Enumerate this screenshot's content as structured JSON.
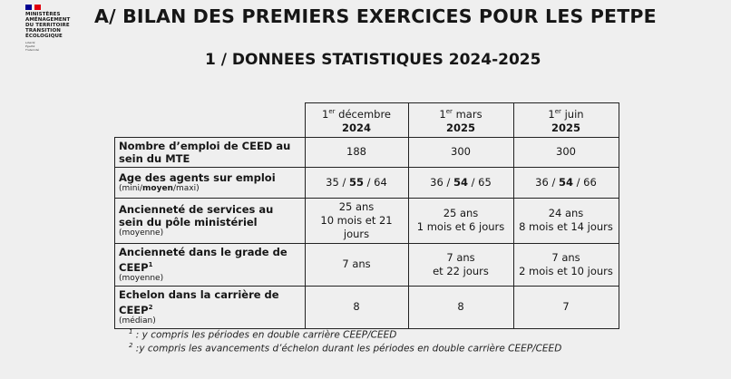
{
  "logo": {
    "lines": [
      "MINISTÈRES",
      "AMÉNAGEMENT",
      "DU TERRITOIRE",
      "TRANSITION",
      "ÉCOLOGIQUE"
    ],
    "motto": [
      "Liberté",
      "Égalité",
      "Fraternité"
    ]
  },
  "title": "A/ BILAN DES PREMIERS EXERCICES POUR LES PETPE",
  "subtitle": "1 / DONNEES STATISTIQUES 2024-2025",
  "table": {
    "columns": [
      {
        "sup": "er",
        "pre": "1",
        "date": "décembre",
        "year": "2024"
      },
      {
        "sup": "er",
        "pre": "1",
        "date": "mars",
        "year": "2025"
      },
      {
        "sup": "er",
        "pre": "1",
        "date": "juin",
        "year": "2025"
      }
    ],
    "rows": [
      {
        "label": "Nombre d’emploi de CEED au sein du MTE",
        "note": "",
        "values": [
          [
            "188"
          ],
          [
            "300"
          ],
          [
            "300"
          ]
        ]
      },
      {
        "label": "Age des agents sur emploi",
        "note_parts": [
          "(mini/",
          "moyen",
          "/maxi)"
        ],
        "values": [
          [
            "35 / ",
            "55",
            " / 64"
          ],
          [
            "36 / ",
            "54",
            " / 65"
          ],
          [
            "36 / ",
            "54",
            " / 66"
          ]
        ]
      },
      {
        "label": "Ancienneté de services au sein du pôle ministériel",
        "note": "(moyenne)",
        "values": [
          [
            "25 ans",
            "10 mois et 21 jours"
          ],
          [
            "25 ans",
            "1 mois et 6 jours"
          ],
          [
            "24 ans",
            "8 mois et 14 jours"
          ]
        ]
      },
      {
        "label": "Ancienneté dans le grade de CEEP",
        "sup": "1",
        "note": "(moyenne)",
        "values": [
          [
            "7 ans"
          ],
          [
            "7 ans",
            "et 22 jours"
          ],
          [
            "7 ans",
            "2 mois et 10 jours"
          ]
        ]
      },
      {
        "label": "Echelon dans la carrière de CEEP",
        "sup": "2",
        "note": "(médian)",
        "values": [
          [
            "8"
          ],
          [
            "8"
          ],
          [
            "7"
          ]
        ]
      }
    ]
  },
  "footnotes": [
    {
      "mark": "1",
      "text": " : y compris les périodes en double carrière CEEP/CEED"
    },
    {
      "mark": "2",
      "text": " :y compris les avancements d’échelon durant les périodes en double carrière CEEP/CEED"
    }
  ]
}
